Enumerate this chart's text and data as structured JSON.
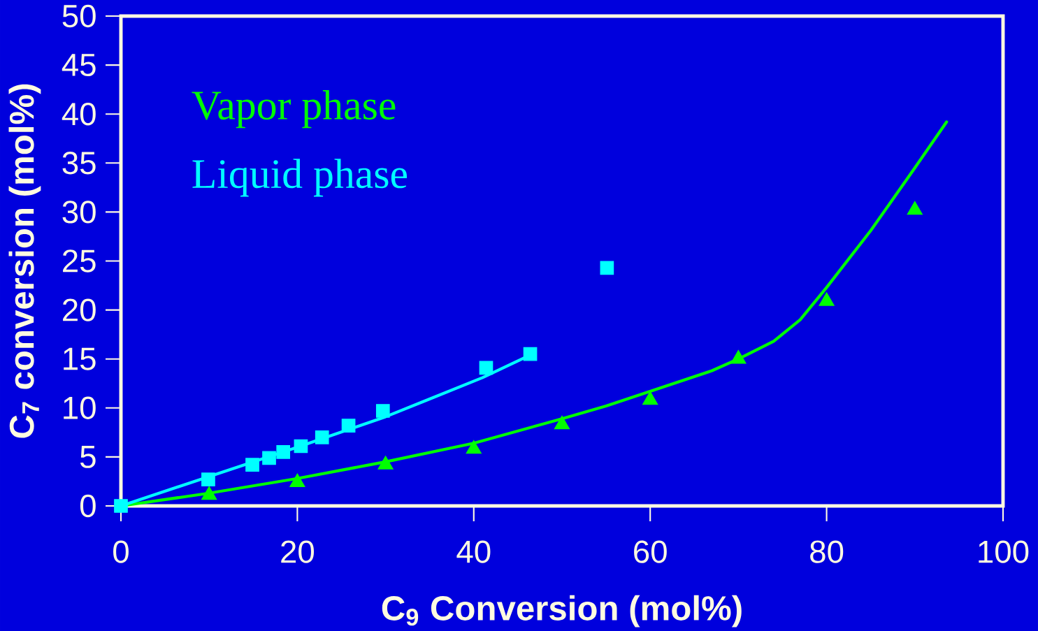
{
  "chart_data": {
    "type": "scatter",
    "xlabel": "C$_{9}$ Conversion (mol%)",
    "ylabel": "C$_{7}$ conversion (mol%)",
    "xlim": [
      0,
      100
    ],
    "ylim": [
      0,
      50
    ],
    "xticks": [
      0,
      20,
      40,
      60,
      80,
      100
    ],
    "yticks": [
      0,
      5,
      10,
      15,
      20,
      25,
      30,
      35,
      40,
      45,
      50
    ],
    "grid": false,
    "line_style": "solid",
    "series": [
      {
        "name": "Vapor phase",
        "marker": "triangle",
        "color": "#00ff00",
        "x": [
          10,
          20,
          30,
          40,
          50,
          60,
          70,
          80,
          90
        ],
        "values": [
          1.1,
          2.4,
          4.2,
          5.8,
          8.3,
          10.8,
          15.0,
          20.9,
          30.2
        ]
      },
      {
        "name": "Liquid phase",
        "marker": "square",
        "color": "#00ffff",
        "x": [
          0,
          9.9,
          14.9,
          16.8,
          18.4,
          20.4,
          22.8,
          25.8,
          29.7,
          41.4,
          46.4,
          55.1
        ],
        "values": [
          0,
          2.7,
          4.2,
          4.9,
          5.5,
          6.1,
          7.0,
          8.2,
          9.7,
          14.1,
          15.5,
          24.3
        ]
      },
      {
        "type": "line",
        "marker": "none",
        "color": "#00ff00",
        "x": [
          0,
          10,
          20,
          30,
          40,
          50,
          55,
          60,
          67,
          70,
          74,
          77,
          80,
          85,
          90,
          93.6
        ],
        "values": [
          0,
          1.3,
          2.8,
          4.5,
          6.4,
          8.9,
          10.2,
          11.7,
          13.8,
          15.0,
          16.8,
          19.0,
          22.3,
          28.1,
          34.5,
          39.2
        ]
      },
      {
        "type": "line",
        "marker": "none",
        "color": "#00ffff",
        "x": [
          0,
          10,
          20,
          30,
          34.7,
          41,
          46.4
        ],
        "values": [
          0,
          3.0,
          6.0,
          9.1,
          10.8,
          13.1,
          15.4
        ]
      }
    ]
  }
}
